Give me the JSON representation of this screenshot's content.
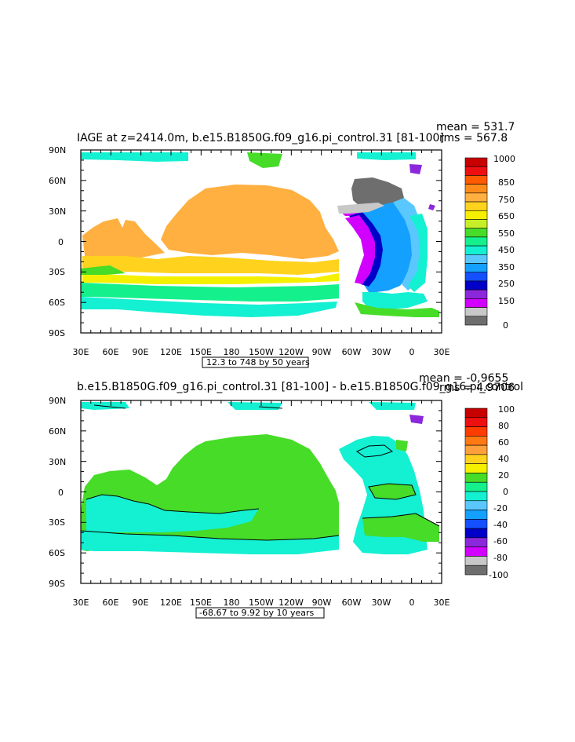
{
  "panels": [
    {
      "title": "IAGE at z=2414.0m, b.e15.B1850G.f09_g16.pi_control.31 [81-100]",
      "mean_text": "mean = 531.7",
      "rms_text": "rms = 567.8",
      "range_text": "12.3 to 748 by 50 years",
      "legend_labels": [
        "1000",
        "850",
        "750",
        "650",
        "550",
        "450",
        "350",
        "250",
        "150",
        "0"
      ],
      "legend_colors": [
        "#c80000",
        "#ee1010",
        "#ff5a00",
        "#ff8c1a",
        "#ffb040",
        "#ffd21e",
        "#f5f000",
        "#c8ee28",
        "#46dc28",
        "#14f08c",
        "#14f0d2",
        "#5ac8ff",
        "#14a0ff",
        "#1450ff",
        "#0000c8",
        "#8c28dc",
        "#d200ff",
        "#c8c8c8",
        "#6e6e6e"
      ]
    },
    {
      "title": "b.e15.B1850G.f09_g16.pi_control.31 [81-100] - b.e15.B1850G.f09_g16.pi_control",
      "mean_text": "mean = -0.9655",
      "rms_text": "rms = 4.9706",
      "range_text": "-68.67 to 9.92 by 10 years",
      "legend_labels": [
        "100",
        "80",
        "60",
        "40",
        "20",
        "0",
        "-20",
        "-40",
        "-60",
        "-80",
        "-100"
      ],
      "legend_colors": [
        "#c80000",
        "#ee1010",
        "#ff3c00",
        "#ff7814",
        "#ffa03c",
        "#ffd21e",
        "#f5f000",
        "#46dc28",
        "#14f08c",
        "#14f0d2",
        "#5ac8ff",
        "#14a0ff",
        "#1450ff",
        "#0000c8",
        "#8c28dc",
        "#d200ff",
        "#c8c8c8",
        "#6e6e6e"
      ]
    }
  ],
  "axes": {
    "lat_labels": [
      "90N",
      "60N",
      "30N",
      "0",
      "30S",
      "60S",
      "90S"
    ],
    "lon_labels": [
      "30E",
      "60E",
      "90E",
      "120E",
      "150E",
      "180",
      "150W",
      "120W",
      "90W",
      "60W",
      "30W",
      "0",
      "30E"
    ]
  }
}
